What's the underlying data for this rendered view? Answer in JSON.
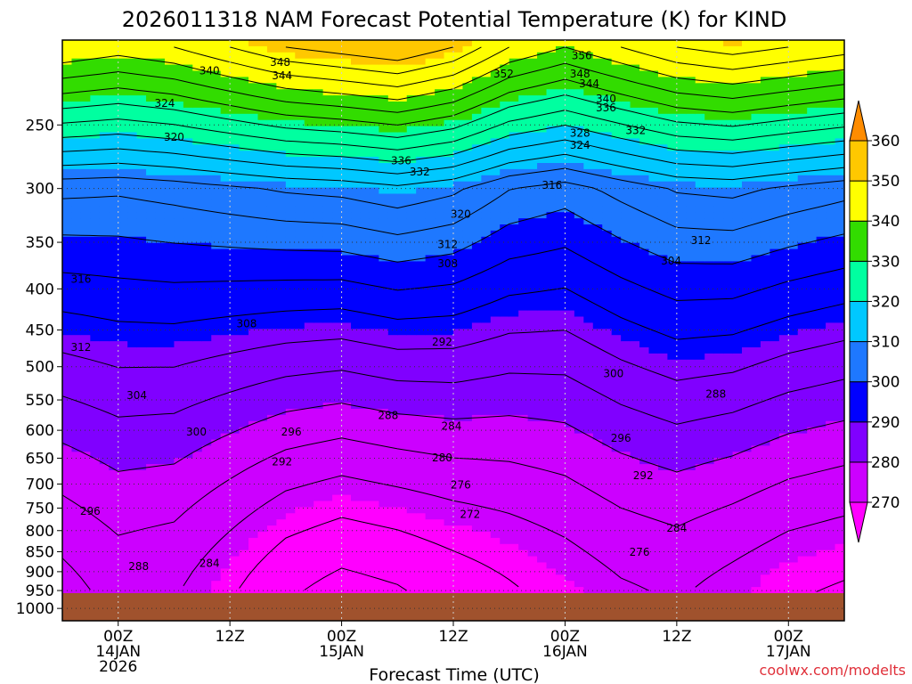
{
  "chart_data": {
    "type": "heatmap",
    "title": "2026011318 NAM Forecast Potential Temperature (K) for KIND",
    "xlabel": "Forecast Time (UTC)",
    "ylabel": "",
    "credit": "coolwx.com/modelts",
    "credit_color": "#e0303a",
    "ground_color": "#a0522d",
    "y_scale": "log",
    "ylim_hPa": [
      1000,
      200
    ],
    "y_ticks": [
      "250",
      "300",
      "350",
      "400",
      "450",
      "500",
      "550",
      "600",
      "650",
      "700",
      "750",
      "800",
      "850",
      "900",
      "950",
      "1000"
    ],
    "x_ticks": [
      {
        "hour": 6,
        "line1": "00Z",
        "line2": "14JAN",
        "line3": "2026"
      },
      {
        "hour": 18,
        "line1": "12Z",
        "line2": "",
        "line3": ""
      },
      {
        "hour": 30,
        "line1": "00Z",
        "line2": "15JAN",
        "line3": ""
      },
      {
        "hour": 42,
        "line1": "12Z",
        "line2": "",
        "line3": ""
      },
      {
        "hour": 54,
        "line1": "00Z",
        "line2": "16JAN",
        "line3": ""
      },
      {
        "hour": 66,
        "line1": "12Z",
        "line2": "",
        "line3": ""
      },
      {
        "hour": 78,
        "line1": "00Z",
        "line2": "17JAN",
        "line3": ""
      }
    ],
    "xlim_hours": [
      0,
      84
    ],
    "colorbar": {
      "levels": [
        270,
        280,
        290,
        300,
        310,
        320,
        330,
        340,
        350,
        360
      ],
      "labels": [
        "270",
        "280",
        "290",
        "300",
        "310",
        "320",
        "330",
        "340",
        "350",
        "360"
      ],
      "colors": [
        "#ff00ff",
        "#cc00ff",
        "#8000ff",
        "#0000ff",
        "#1e78ff",
        "#00c8ff",
        "#00ffa0",
        "#32dc00",
        "#ffff00",
        "#ffc800",
        "#ff8c00"
      ]
    },
    "contour_interval": 4,
    "series": [
      {
        "hour": 0,
        "surface_theta": 270,
        "tropo_theta": 322
      },
      {
        "hour": 6,
        "surface_theta": 273,
        "tropo_theta": 320
      },
      {
        "hour": 12,
        "surface_theta": 272,
        "tropo_theta": 322
      },
      {
        "hour": 18,
        "surface_theta": 268,
        "tropo_theta": 326
      },
      {
        "hour": 24,
        "surface_theta": 264,
        "tropo_theta": 330
      },
      {
        "hour": 30,
        "surface_theta": 262,
        "tropo_theta": 332
      },
      {
        "hour": 36,
        "surface_theta": 263,
        "tropo_theta": 334
      },
      {
        "hour": 42,
        "surface_theta": 265,
        "tropo_theta": 330
      },
      {
        "hour": 48,
        "surface_theta": 267,
        "tropo_theta": 322
      },
      {
        "hour": 54,
        "surface_theta": 269,
        "tropo_theta": 318
      },
      {
        "hour": 60,
        "surface_theta": 271,
        "tropo_theta": 322
      },
      {
        "hour": 66,
        "surface_theta": 272,
        "tropo_theta": 326
      },
      {
        "hour": 72,
        "surface_theta": 270,
        "tropo_theta": 328
      },
      {
        "hour": 78,
        "surface_theta": 268,
        "tropo_theta": 326
      },
      {
        "hour": 84,
        "surface_theta": 267,
        "tropo_theta": 324
      }
    ],
    "contour_labels": [
      {
        "text": "348",
        "hour": 23.4,
        "hPa": 209
      },
      {
        "text": "344",
        "hour": 23.6,
        "hPa": 217
      },
      {
        "text": "340",
        "hour": 15.8,
        "hPa": 214
      },
      {
        "text": "356",
        "hour": 55.8,
        "hPa": 205
      },
      {
        "text": "352",
        "hour": 47.4,
        "hPa": 216
      },
      {
        "text": "348",
        "hour": 55.6,
        "hPa": 216
      },
      {
        "text": "344",
        "hour": 56.6,
        "hPa": 222
      },
      {
        "text": "340",
        "hour": 58.4,
        "hPa": 232
      },
      {
        "text": "336",
        "hour": 58.4,
        "hPa": 238
      },
      {
        "text": "332",
        "hour": 61.6,
        "hPa": 254
      },
      {
        "text": "328",
        "hour": 55.6,
        "hPa": 256
      },
      {
        "text": "324",
        "hour": 55.6,
        "hPa": 265
      },
      {
        "text": "324",
        "hour": 11.0,
        "hPa": 235
      },
      {
        "text": "320",
        "hour": 12.0,
        "hPa": 259
      },
      {
        "text": "336",
        "hour": 36.4,
        "hPa": 277
      },
      {
        "text": "332",
        "hour": 38.4,
        "hPa": 286
      },
      {
        "text": "316",
        "hour": 52.6,
        "hPa": 297
      },
      {
        "text": "320",
        "hour": 42.8,
        "hPa": 323
      },
      {
        "text": "312",
        "hour": 41.4,
        "hPa": 352
      },
      {
        "text": "308",
        "hour": 41.4,
        "hPa": 372
      },
      {
        "text": "312",
        "hour": 68.6,
        "hPa": 348
      },
      {
        "text": "304",
        "hour": 65.4,
        "hPa": 369
      },
      {
        "text": "316",
        "hour": 2.0,
        "hPa": 389
      },
      {
        "text": "312",
        "hour": 2.0,
        "hPa": 473
      },
      {
        "text": "308",
        "hour": 19.8,
        "hPa": 442
      },
      {
        "text": "304",
        "hour": 8.0,
        "hPa": 543
      },
      {
        "text": "300",
        "hour": 14.4,
        "hPa": 603
      },
      {
        "text": "296",
        "hour": 24.6,
        "hPa": 603
      },
      {
        "text": "292",
        "hour": 23.6,
        "hPa": 657
      },
      {
        "text": "292",
        "hour": 40.8,
        "hPa": 466
      },
      {
        "text": "300",
        "hour": 59.2,
        "hPa": 510
      },
      {
        "text": "288",
        "hour": 35.0,
        "hPa": 575
      },
      {
        "text": "284",
        "hour": 41.8,
        "hPa": 593
      },
      {
        "text": "280",
        "hour": 40.8,
        "hPa": 649
      },
      {
        "text": "276",
        "hour": 42.8,
        "hPa": 702
      },
      {
        "text": "272",
        "hour": 43.8,
        "hPa": 764
      },
      {
        "text": "296",
        "hour": 60.0,
        "hPa": 614
      },
      {
        "text": "292",
        "hour": 62.4,
        "hPa": 683
      },
      {
        "text": "288",
        "hour": 70.2,
        "hPa": 541
      },
      {
        "text": "284",
        "hour": 66.0,
        "hPa": 794
      },
      {
        "text": "276",
        "hour": 62.0,
        "hPa": 851
      },
      {
        "text": "296",
        "hour": 3.0,
        "hPa": 757
      },
      {
        "text": "288",
        "hour": 8.2,
        "hPa": 887
      },
      {
        "text": "284",
        "hour": 15.8,
        "hPa": 879
      }
    ]
  }
}
